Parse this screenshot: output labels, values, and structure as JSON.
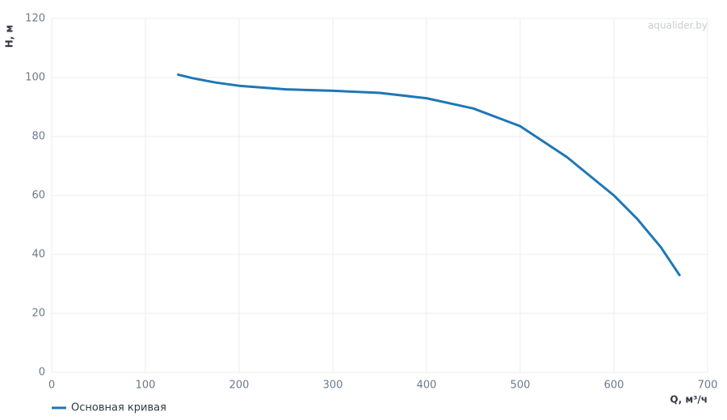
{
  "chart_data": {
    "type": "line",
    "watermark": "aqualider.by",
    "x_label": "Q, м³/ч",
    "y_label": "H, м",
    "x": [
      135,
      150,
      175,
      200,
      250,
      300,
      350,
      400,
      450,
      500,
      550,
      600,
      625,
      650,
      670
    ],
    "series": [
      {
        "name": "Основная кривая",
        "color": "#1f77b4",
        "values": [
          101,
          99.8,
          98.3,
          97.2,
          96,
          95.5,
          94.8,
          93,
          89.5,
          83.5,
          73,
          60,
          52,
          42.5,
          33
        ]
      }
    ],
    "xlim": [
      0,
      700
    ],
    "xticks": [
      0,
      100,
      200,
      300,
      400,
      500,
      600,
      700
    ],
    "ylim": [
      0,
      120
    ],
    "yticks": [
      0,
      20,
      40,
      60,
      80,
      100,
      120
    ],
    "grid": true
  }
}
